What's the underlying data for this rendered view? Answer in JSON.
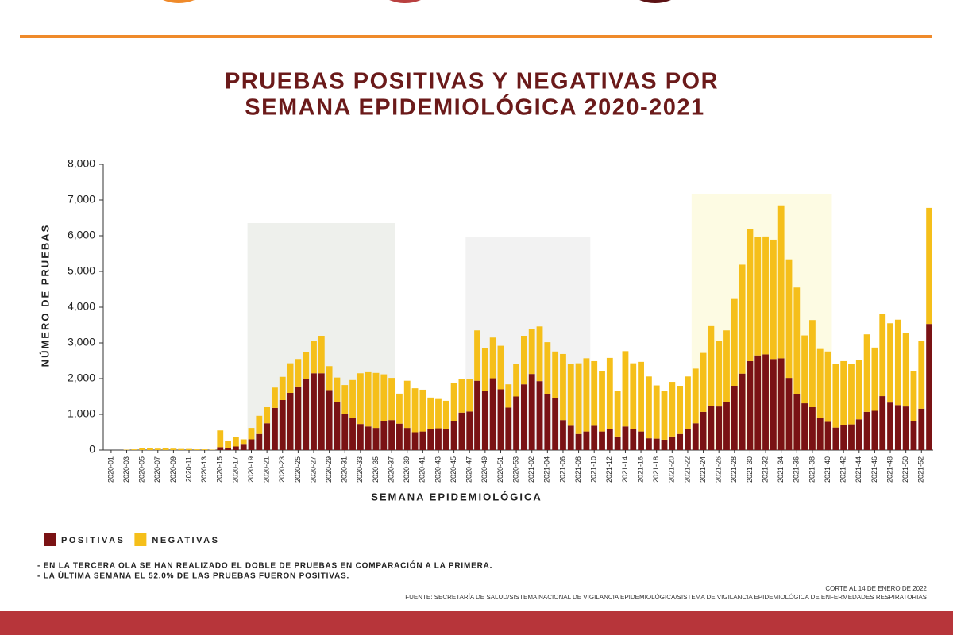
{
  "chart_data": {
    "type": "stacked_bar",
    "title": [
      "PRUEBAS POSITIVAS Y NEGATIVAS POR",
      "SEMANA EPIDEMIOLÓGICA 2020-2021"
    ],
    "y_label": "NÚMERO DE PRUEBAS",
    "x_label": "SEMANA EPIDEMIOLÓGICA",
    "categories": [
      "2020-01",
      null,
      "2020-03",
      null,
      "2020-05",
      null,
      "2020-07",
      null,
      "2020-09",
      null,
      "2020-11",
      null,
      "2020-13",
      null,
      "2020-15",
      null,
      "2020-17",
      null,
      "2020-19",
      null,
      "2020-21",
      null,
      "2020-23",
      null,
      "2020-25",
      null,
      "2020-27",
      null,
      "2020-29",
      null,
      "2020-31",
      null,
      "2020-33",
      null,
      "2020-35",
      null,
      "2020-37",
      null,
      "2020-39",
      null,
      "2020-41",
      null,
      "2020-43",
      null,
      "2020-45",
      null,
      "2020-47",
      null,
      "2020-49",
      null,
      "2020-51",
      null,
      "2020-53",
      null,
      "2021-02",
      null,
      "2021-04",
      null,
      "2021-06",
      null,
      "2021-08",
      null,
      "2021-10",
      null,
      "2021-12",
      null,
      "2021-14",
      null,
      "2021-16",
      null,
      "2021-18",
      null,
      "2021-20",
      null,
      "2021-22",
      null,
      "2021-24",
      null,
      "2021-26",
      null,
      "2021-28",
      null,
      "2021-30",
      null,
      "2021-32",
      null,
      "2021-34",
      null,
      "2021-36",
      null,
      "2021-38",
      null,
      "2021-40",
      null,
      "2021-42",
      null,
      "2021-44",
      null,
      "2021-46",
      null,
      "2021-48",
      null,
      "2021-50",
      null,
      "2021-52",
      null
    ],
    "series": [
      {
        "name": "POSITIVAS",
        "color": "#7a1214",
        "values": [
          0,
          0,
          0,
          0,
          0,
          0,
          0,
          0,
          0,
          0,
          0,
          0,
          0,
          0,
          80,
          60,
          100,
          150,
          300,
          450,
          750,
          1180,
          1400,
          1600,
          1780,
          2000,
          2150,
          2150,
          1680,
          1350,
          1020,
          900,
          730,
          660,
          620,
          800,
          840,
          740,
          620,
          500,
          520,
          580,
          610,
          590,
          800,
          1050,
          1080,
          1940,
          1660,
          2010,
          1700,
          1190,
          1500,
          1840,
          2130,
          1930,
          1560,
          1450,
          840,
          680,
          450,
          520,
          680,
          520,
          590,
          380,
          660,
          580,
          520,
          330,
          320,
          290,
          380,
          450,
          580,
          750,
          1070,
          1230,
          1220,
          1350,
          1800,
          2140,
          2490,
          2650,
          2680,
          2550,
          2570,
          2020,
          1560,
          1310,
          1200,
          900,
          790,
          630,
          700,
          720,
          860,
          1070,
          1100,
          1510,
          1330,
          1260,
          1220,
          810,
          1160,
          3530
        ]
      },
      {
        "name": "NEGATIVAS",
        "color": "#f5bf1a",
        "values": [
          0,
          0,
          10,
          20,
          60,
          60,
          40,
          50,
          40,
          30,
          30,
          20,
          20,
          10,
          470,
          190,
          260,
          150,
          320,
          510,
          450,
          570,
          650,
          830,
          770,
          750,
          900,
          1050,
          670,
          680,
          800,
          1060,
          1420,
          1520,
          1540,
          1320,
          1180,
          840,
          1320,
          1230,
          1170,
          890,
          820,
          790,
          1070,
          930,
          920,
          1410,
          1190,
          1140,
          1220,
          650,
          900,
          1360,
          1250,
          1530,
          1460,
          1310,
          1850,
          1730,
          1980,
          2050,
          1810,
          1690,
          1990,
          1270,
          2110,
          1850,
          1950,
          1730,
          1490,
          1370,
          1530,
          1350,
          1480,
          1530,
          1650,
          2240,
          1840,
          2000,
          2430,
          3050,
          3690,
          3320,
          3300,
          3340,
          4280,
          3320,
          2990,
          1900,
          2440,
          1930,
          1970,
          1790,
          1790,
          1680,
          1670,
          2170,
          1770,
          2290,
          2220,
          2390,
          2060,
          1400,
          1890,
          3250
        ]
      }
    ],
    "ylim": [
      0,
      8000
    ],
    "yticks": [
      0,
      {
        "value": 1000,
        "label": "1,000"
      },
      {
        "value": 2000,
        "label": "2,000"
      },
      {
        "value": 3000,
        "label": "3,000"
      },
      {
        "value": 4000,
        "label": "4,000"
      },
      {
        "value": 5000,
        "label": "5,000"
      },
      {
        "value": 6000,
        "label": "6,000"
      },
      {
        "value": 7000,
        "label": "7,000"
      },
      {
        "value": 8000,
        "label": "8,000"
      }
    ],
    "annotations": [
      "- EN LA TERCERA OLA SE HAN REALIZADO EL DOBLE DE PRUEBAS EN COMPARACIÓN A LA PRIMERA.",
      "- LA ÚLTIMA SEMANA EL 52.0% DE LAS PRUEBAS FUERON POSITIVAS."
    ],
    "cutoff": "CORTE AL 14 DE ENERO DE 2022",
    "source": "FUENTE: SECRETARÍA DE SALUD/SISTEMA NACIONAL DE VIGILANCIA EPIDEMIOLÓGICA/SISTEMA DE VIGILANCIA EPIDEMIOLÓGICA DE ENFERMEDADES RESPIRATORIAS"
  }
}
